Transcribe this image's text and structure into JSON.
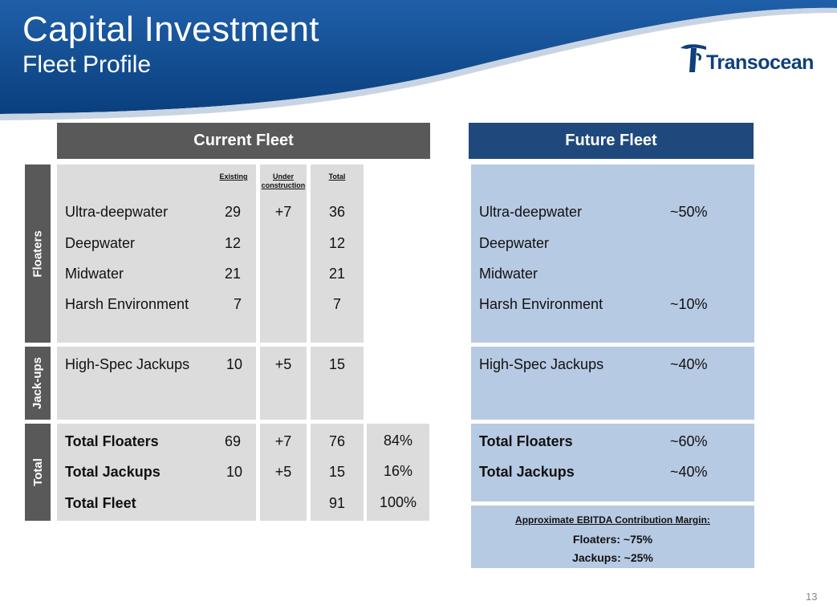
{
  "header": {
    "title": "Capital Investment",
    "subtitle": "Fleet Profile",
    "logo_text": "Transocean"
  },
  "current_fleet": {
    "title": "Current Fleet",
    "columns": {
      "existing": "Existing",
      "under_construction": "Under construction",
      "total": "Total"
    },
    "groups": {
      "floaters": {
        "label": "Floaters"
      },
      "jackups": {
        "label": "Jack-ups"
      },
      "total": {
        "label": "Total"
      }
    },
    "rows": {
      "ultra_deepwater": {
        "name": "Ultra-deepwater",
        "existing": "29",
        "under_construction": "+7",
        "total": "36"
      },
      "deepwater": {
        "name": "Deepwater",
        "existing": "12",
        "under_construction": "",
        "total": "12"
      },
      "midwater": {
        "name": "Midwater",
        "existing": "21",
        "under_construction": "",
        "total": "21"
      },
      "harsh_environment": {
        "name": "Harsh Environment",
        "existing": "7",
        "under_construction": "",
        "total": "7"
      },
      "high_spec_jackups": {
        "name": "High-Spec Jackups",
        "existing": "10",
        "under_construction": "+5",
        "total": "15"
      },
      "total_floaters": {
        "name": "Total Floaters",
        "existing": "69",
        "under_construction": "+7",
        "total": "76",
        "share": "84%"
      },
      "total_jackups": {
        "name": "Total Jackups",
        "existing": "10",
        "under_construction": "+5",
        "total": "15",
        "share": "16%"
      },
      "total_fleet": {
        "name": "Total Fleet",
        "existing": "",
        "under_construction": "",
        "total": "91",
        "share": "100%"
      }
    }
  },
  "future_fleet": {
    "title": "Future Fleet",
    "rows": {
      "ultra_deepwater": {
        "name": "Ultra-deepwater",
        "share": "~50%"
      },
      "deepwater": {
        "name": "Deepwater",
        "share": ""
      },
      "midwater": {
        "name": "Midwater",
        "share": ""
      },
      "harsh_environment": {
        "name": "Harsh Environment",
        "share": "~10%"
      },
      "high_spec_jackups": {
        "name": "High-Spec Jackups",
        "share": "~40%"
      },
      "total_floaters": {
        "name": "Total Floaters",
        "share": "~60%"
      },
      "total_jackups": {
        "name": "Total Jackups",
        "share": "~40%"
      }
    },
    "ebitda": {
      "heading": "Approximate EBITDA Contribution Margin:",
      "floaters": "Floaters: ~75%",
      "jackups": "Jackups: ~25%"
    }
  },
  "page_number": "13",
  "colors": {
    "header_blue": "#0f4c8c",
    "current_header": "#595959",
    "future_header": "#1f497d",
    "grey_cell": "#dcdcdc",
    "blue_cell": "#b7cae3"
  }
}
